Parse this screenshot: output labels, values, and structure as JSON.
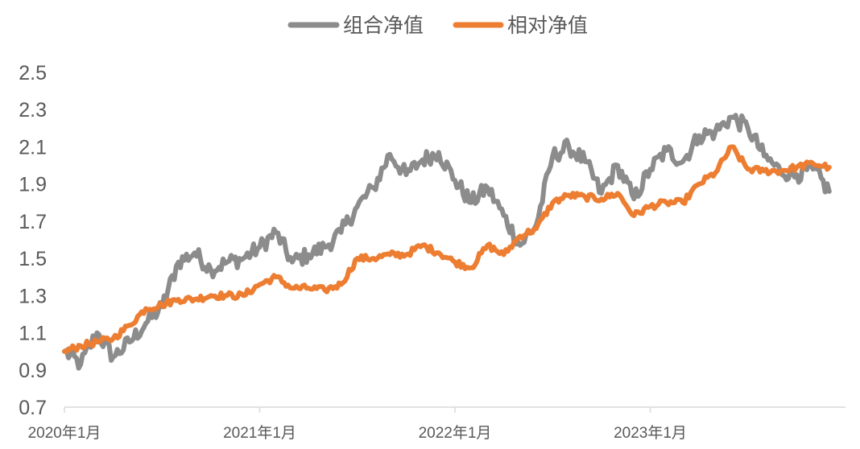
{
  "chart_data": {
    "type": "line",
    "title": "",
    "xlabel": "",
    "ylabel": "",
    "ylim": [
      0.7,
      2.5
    ],
    "y_ticks": [
      "0.7",
      "0.9",
      "1.1",
      "1.3",
      "1.5",
      "1.7",
      "1.9",
      "2.1",
      "2.3",
      "2.5"
    ],
    "x_ticks": [
      "2020年1月",
      "2021年1月",
      "2022年1月",
      "2023年1月"
    ],
    "grid": false,
    "legend_position": "top-center",
    "x": [
      "2020-01",
      "2020-02",
      "2020-03",
      "2020-04",
      "2020-05",
      "2020-06",
      "2020-07",
      "2020-08",
      "2020-09",
      "2020-10",
      "2020-11",
      "2020-12",
      "2021-01",
      "2021-02",
      "2021-03",
      "2021-04",
      "2021-05",
      "2021-06",
      "2021-07",
      "2021-08",
      "2021-09",
      "2021-10",
      "2021-11",
      "2021-12",
      "2022-01",
      "2022-02",
      "2022-03",
      "2022-04",
      "2022-05",
      "2022-06",
      "2022-07",
      "2022-08",
      "2022-09",
      "2022-10",
      "2022-11",
      "2022-12",
      "2023-01",
      "2023-02",
      "2023-03",
      "2023-04",
      "2023-05",
      "2023-06",
      "2023-07",
      "2023-08",
      "2023-09",
      "2023-10",
      "2023-11",
      "2023-12"
    ],
    "series": [
      {
        "name": "组合净值",
        "color": "#8c8c8c",
        "values": [
          1.0,
          0.93,
          1.1,
          0.97,
          1.05,
          1.15,
          1.24,
          1.48,
          1.53,
          1.44,
          1.48,
          1.5,
          1.56,
          1.64,
          1.48,
          1.52,
          1.56,
          1.64,
          1.78,
          1.88,
          2.06,
          1.95,
          2.03,
          2.07,
          1.92,
          1.8,
          1.88,
          1.73,
          1.57,
          1.68,
          2.05,
          2.1,
          2.02,
          1.85,
          2.0,
          1.82,
          1.98,
          2.08,
          2.02,
          2.16,
          2.18,
          2.26,
          2.2,
          2.05,
          1.97,
          1.95,
          1.98,
          1.86
        ]
      },
      {
        "name": "相对净值",
        "color": "#ed7d31",
        "values": [
          1.0,
          1.03,
          1.05,
          1.07,
          1.14,
          1.23,
          1.25,
          1.28,
          1.28,
          1.3,
          1.3,
          1.3,
          1.36,
          1.4,
          1.34,
          1.34,
          1.33,
          1.36,
          1.5,
          1.5,
          1.52,
          1.52,
          1.57,
          1.53,
          1.48,
          1.45,
          1.57,
          1.52,
          1.62,
          1.66,
          1.8,
          1.84,
          1.83,
          1.82,
          1.85,
          1.73,
          1.78,
          1.8,
          1.8,
          1.9,
          1.96,
          2.1,
          1.98,
          1.97,
          1.97,
          1.99,
          2.01,
          1.99
        ]
      }
    ]
  }
}
